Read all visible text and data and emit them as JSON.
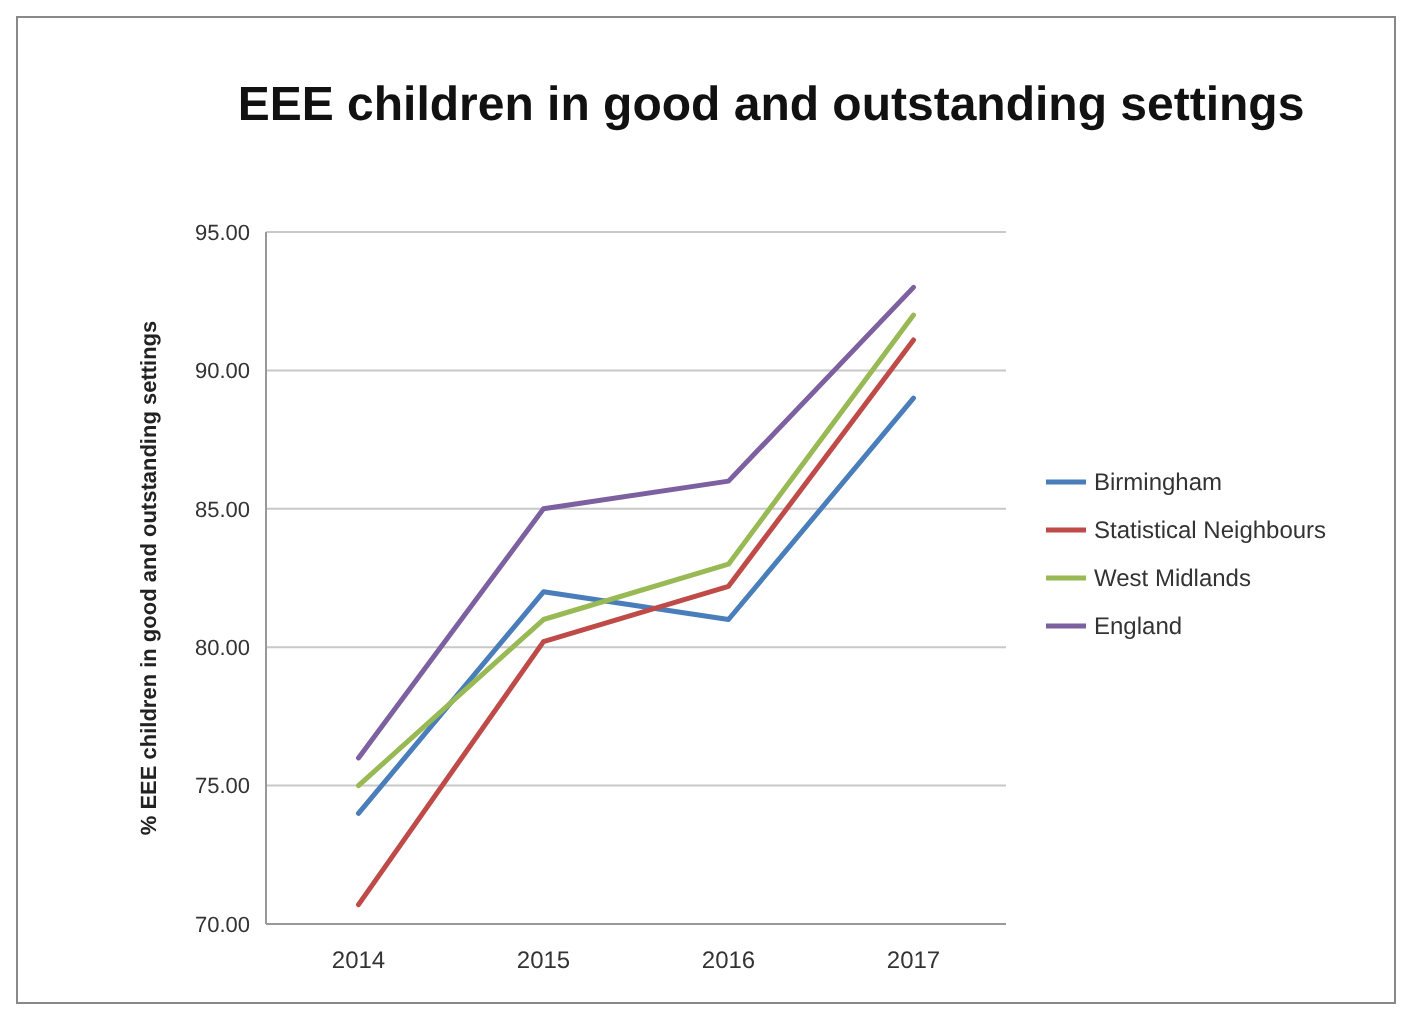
{
  "chart_data": {
    "type": "line",
    "title": "EEE children in good and outstanding settings",
    "ylabel": "% EEE children in good and outstanding settings",
    "categories": [
      "2014",
      "2015",
      "2016",
      "2017"
    ],
    "series": [
      {
        "name": "Birmingham",
        "color": "#4a7ebb",
        "values": [
          74,
          82,
          81,
          89
        ]
      },
      {
        "name": "Statistical Neighbours",
        "color": "#be4b48",
        "values": [
          70.7,
          80.2,
          82.2,
          91.1
        ]
      },
      {
        "name": "West Midlands",
        "color": "#98b954",
        "values": [
          75,
          81,
          83,
          92
        ]
      },
      {
        "name": "England",
        "color": "#7d60a0",
        "values": [
          76,
          85,
          86,
          93
        ]
      }
    ],
    "ylim": [
      70,
      95
    ],
    "yticks": [
      {
        "value": 70,
        "label": "70.00"
      },
      {
        "value": 75,
        "label": "75.00"
      },
      {
        "value": 80,
        "label": "80.00"
      },
      {
        "value": 85,
        "label": "85.00"
      },
      {
        "value": 90,
        "label": "90.00"
      },
      {
        "value": 95,
        "label": "95.00"
      }
    ],
    "grid": "y",
    "legend": "right",
    "marker": "none",
    "line_style": "solid"
  }
}
